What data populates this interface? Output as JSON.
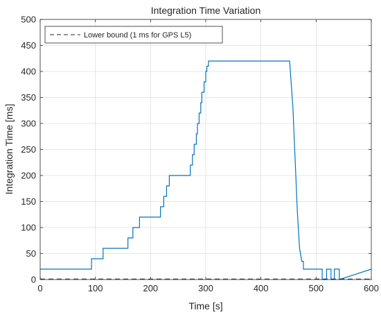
{
  "chart_data": {
    "type": "line",
    "title": "Integration Time Variation",
    "xlabel": "Time [s]",
    "ylabel": "Integration Time [ms]",
    "xlim": [
      0,
      600
    ],
    "ylim": [
      0,
      500
    ],
    "xticks": [
      0,
      100,
      200,
      300,
      400,
      500,
      600
    ],
    "yticks": [
      0,
      50,
      100,
      150,
      200,
      250,
      300,
      350,
      400,
      450,
      500
    ],
    "grid": true,
    "legend_position": "top-left",
    "series": [
      {
        "name": "",
        "color": "#0072BD",
        "style": "solid",
        "x": [
          0,
          93,
          93,
          114,
          114,
          159,
          159,
          168,
          168,
          180,
          180,
          218,
          218,
          224,
          224,
          229,
          229,
          234,
          234,
          240,
          240,
          272,
          272,
          276,
          276,
          279,
          279,
          283,
          283,
          285,
          285,
          288,
          288,
          291,
          291,
          293,
          293,
          297,
          297,
          300,
          300,
          302,
          302,
          305,
          305,
          452,
          458,
          462,
          466,
          470,
          474,
          477,
          477,
          511,
          511,
          519,
          519,
          527,
          527,
          533,
          533,
          542,
          542,
          600
        ],
        "y": [
          20,
          20,
          40,
          40,
          60,
          60,
          80,
          80,
          100,
          100,
          120,
          120,
          140,
          140,
          160,
          160,
          180,
          180,
          200,
          200,
          200,
          200,
          220,
          220,
          240,
          240,
          260,
          260,
          280,
          280,
          300,
          300,
          320,
          320,
          340,
          340,
          360,
          360,
          380,
          380,
          400,
          400,
          410,
          410,
          420,
          420,
          330,
          230,
          130,
          60,
          35,
          35,
          20,
          20,
          0,
          0,
          20,
          20,
          0,
          0,
          20,
          20,
          0,
          20
        ]
      },
      {
        "name": "Lower bound (1 ms for GPS L5)",
        "color": "#262626",
        "style": "dashed",
        "x": [
          0,
          600
        ],
        "y": [
          1,
          1
        ]
      }
    ]
  }
}
